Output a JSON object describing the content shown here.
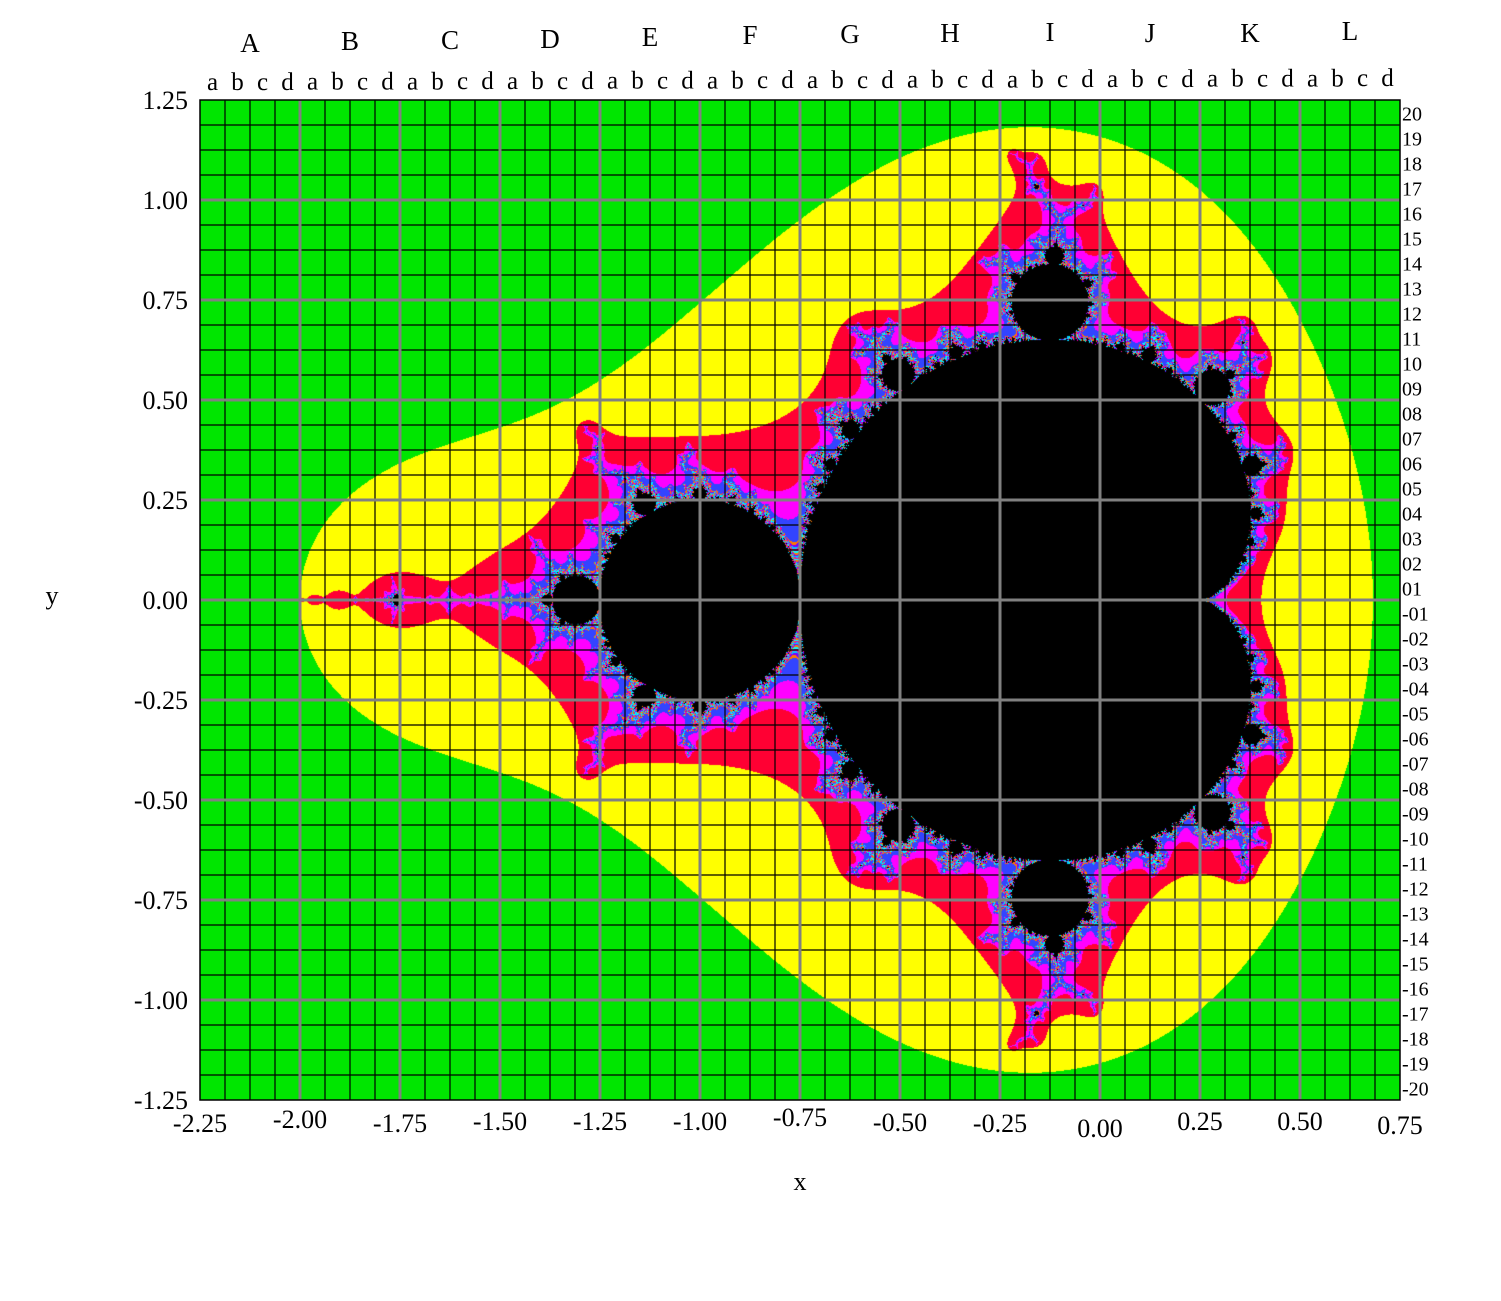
{
  "axes": {
    "x_label": "x",
    "y_label": "y",
    "x_ticks": [
      "-2.25",
      "-2.00",
      "-1.75",
      "-1.50",
      "-1.25",
      "-1.00",
      "-0.75",
      "-0.50",
      "-0.25",
      "0.00",
      "0.25",
      "0.50",
      "0.75"
    ],
    "y_ticks": [
      "1.25",
      "1.00",
      "0.75",
      "0.50",
      "0.25",
      "0.00",
      "-0.25",
      "-0.50",
      "-0.75",
      "-1.00",
      "-1.25"
    ],
    "x_range": [
      -2.25,
      0.75
    ],
    "y_range": [
      -1.25,
      1.25
    ]
  },
  "columns": {
    "major": [
      "A",
      "B",
      "C",
      "D",
      "E",
      "F",
      "G",
      "H",
      "I",
      "J",
      "K",
      "L"
    ],
    "minor": [
      "a",
      "b",
      "c",
      "d"
    ]
  },
  "rows": [
    "20",
    "19",
    "18",
    "17",
    "16",
    "15",
    "14",
    "13",
    "12",
    "11",
    "10",
    "09",
    "08",
    "07",
    "06",
    "05",
    "04",
    "03",
    "02",
    "01",
    "-01",
    "-02",
    "-03",
    "-04",
    "-05",
    "-06",
    "-07",
    "-08",
    "-09",
    "-10",
    "-11",
    "-12",
    "-13",
    "-14",
    "-15",
    "-16",
    "-17",
    "-18",
    "-19",
    "-20"
  ],
  "colors": {
    "exterior": "#00e600",
    "band_near": "#ffff00",
    "band_edge": "#ff0033",
    "band_inner": "#ff00ff",
    "band_deep": "#3344ff",
    "set_interior": "#000000",
    "fine_grid": "#000000",
    "major_grid": "#808080"
  },
  "fractal": {
    "max_iterations": 120
  }
}
